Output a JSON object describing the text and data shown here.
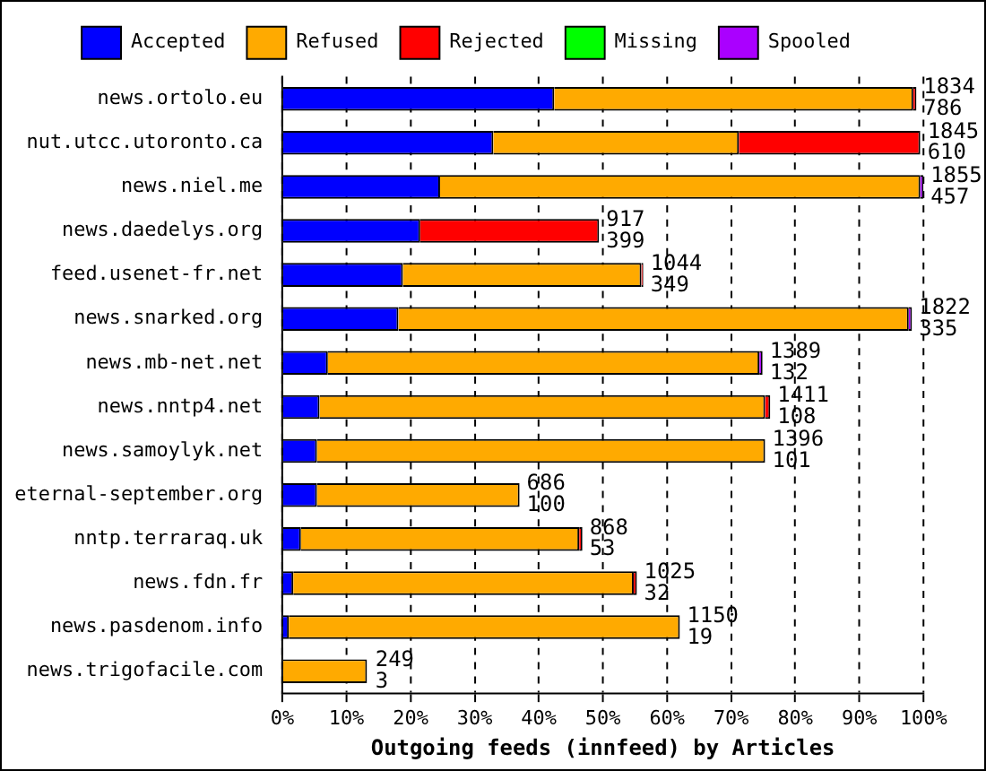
{
  "chart_data": {
    "type": "bar",
    "orientation": "horizontal",
    "stacked": true,
    "xlabel": "Outgoing feeds (innfeed) by Articles",
    "categories": [
      "news.ortolo.eu",
      "nut.utcc.utoronto.ca",
      "news.niel.me",
      "news.daedelys.org",
      "feed.usenet-fr.net",
      "news.snarked.org",
      "news.mb-net.net",
      "news.nntp4.net",
      "news.samoylyk.net",
      "eternal-september.org",
      "nntp.terraraq.uk",
      "news.fdn.fr",
      "news.pasdenom.info",
      "news.trigofacile.com"
    ],
    "series": [
      {
        "name": "Accepted",
        "color": "#0000ff",
        "values": [
          42.4,
          32.9,
          24.6,
          21.5,
          18.8,
          18.1,
          7.1,
          5.8,
          5.4,
          5.4,
          2.9,
          1.7,
          1.0,
          null
        ]
      },
      {
        "name": "Refused",
        "color": "#ffaa00",
        "values": [
          56.0,
          38.3,
          74.9,
          0,
          37.2,
          79.6,
          67.3,
          69.5,
          69.9,
          31.6,
          43.4,
          53.1,
          61.0,
          13.2
        ]
      },
      {
        "name": "Rejected",
        "color": "#ff0000",
        "values": [
          0.5,
          28.3,
          0,
          27.9,
          0.3,
          0,
          0,
          0.8,
          0,
          0,
          0.5,
          0.5,
          0,
          0
        ]
      },
      {
        "name": "Missing",
        "color": "#00ff00",
        "values": [
          0,
          0,
          0,
          0,
          0,
          0,
          0,
          0,
          0,
          0,
          0,
          0,
          0,
          0
        ]
      },
      {
        "name": "Spooled",
        "color": "#aa00ff",
        "values": [
          0,
          0,
          0.5,
          0,
          0,
          0.5,
          0.5,
          0,
          0,
          0,
          0,
          0,
          0,
          0
        ]
      }
    ],
    "xlim": [
      0,
      100
    ],
    "xticks": [
      {
        "value": 0,
        "label": "0%"
      },
      {
        "value": 10,
        "label": "10%"
      },
      {
        "value": 20,
        "label": "20%"
      },
      {
        "value": 30,
        "label": "30%"
      },
      {
        "value": 40,
        "label": "40%"
      },
      {
        "value": 50,
        "label": "50%"
      },
      {
        "value": 60,
        "label": "60%"
      },
      {
        "value": 70,
        "label": "70%"
      },
      {
        "value": 80,
        "label": "80%"
      },
      {
        "value": 90,
        "label": "90%"
      },
      {
        "value": 100,
        "label": "100%"
      }
    ],
    "grid": "x",
    "legend": "top",
    "annotations": [
      {
        "text": "1834\n786",
        "x": 98.9,
        "y": "news.ortolo.eu"
      },
      {
        "text": "1845\n610",
        "x": 99.5,
        "y": "nut.utcc.utoronto.ca"
      },
      {
        "text": "1855\n457",
        "x": 100,
        "y": "news.niel.me"
      },
      {
        "text": "917\n399",
        "x": 49.4,
        "y": "news.daedelys.org"
      },
      {
        "text": "1044\n349",
        "x": 56.3,
        "y": "feed.usenet-fr.net"
      },
      {
        "text": "1822\n335",
        "x": 98.2,
        "y": "news.snarked.org"
      },
      {
        "text": "1389\n132",
        "x": 74.9,
        "y": "news.mb-net.net"
      },
      {
        "text": "1411\n108",
        "x": 76.1,
        "y": "news.nntp4.net"
      },
      {
        "text": "1396\n101",
        "x": 75.3,
        "y": "news.samoylyk.net"
      },
      {
        "text": "686\n100",
        "x": 37.0,
        "y": "eternal-september.org"
      },
      {
        "text": "868\n53",
        "x": 46.8,
        "y": "nntp.terraraq.uk"
      },
      {
        "text": "1025\n32",
        "x": 55.3,
        "y": "news.fdn.fr"
      },
      {
        "text": "1150\n19",
        "x": 62.0,
        "y": "news.pasdenom.info"
      },
      {
        "text": "249\n3",
        "x": 13.4,
        "y": "news.trigofacile.com"
      }
    ]
  }
}
